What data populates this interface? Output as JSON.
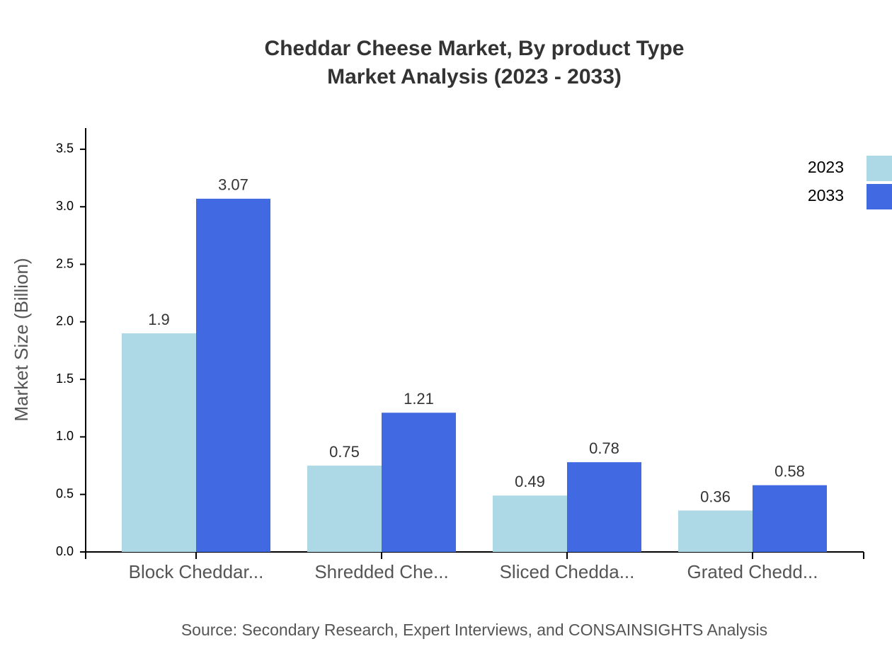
{
  "chart_data": {
    "type": "bar",
    "title": [
      "Cheddar Cheese Market, By product Type",
      "Market Analysis (2023 - 2033)"
    ],
    "y_label": "Market Size (Billion)",
    "source": "Source: Secondary Research, Expert Interviews, and CONSAINSIGHTS Analysis",
    "categories": [
      "Block Cheddar...",
      "Shredded Che...",
      "Sliced Chedda...",
      "Grated Chedd..."
    ],
    "series": [
      {
        "name": "2023",
        "color": "#add8e6",
        "values": [
          1.9,
          0.75,
          0.49,
          0.36
        ]
      },
      {
        "name": "2033",
        "color": "#4169e1",
        "values": [
          3.07,
          1.21,
          0.78,
          0.58
        ]
      }
    ],
    "ylim": [
      0,
      3.684
    ],
    "yticks": [
      {
        "value": 0,
        "label": "0.0"
      },
      0.5,
      {
        "value": 1,
        "label": "1.0"
      },
      1.5,
      {
        "value": 2,
        "label": "2.0"
      },
      2.5,
      {
        "value": 3,
        "label": "3.0"
      },
      3.5
    ],
    "legend": "top-right"
  }
}
